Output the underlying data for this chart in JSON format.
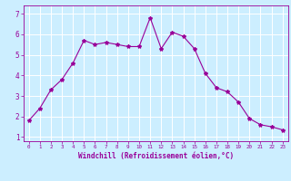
{
  "x": [
    0,
    1,
    2,
    3,
    4,
    5,
    6,
    7,
    8,
    9,
    10,
    11,
    12,
    13,
    14,
    15,
    16,
    17,
    18,
    19,
    20,
    21,
    22,
    23
  ],
  "y": [
    1.8,
    2.4,
    3.3,
    3.8,
    4.6,
    5.7,
    5.5,
    5.6,
    5.5,
    5.4,
    5.4,
    6.8,
    5.3,
    6.1,
    5.9,
    5.3,
    4.1,
    3.4,
    3.2,
    2.7,
    1.9,
    1.6,
    1.5,
    1.35
  ],
  "line_color": "#990099",
  "marker": "*",
  "marker_size": 3,
  "bg_color": "#cceeff",
  "grid_color": "#ffffff",
  "xlabel": "Windchill (Refroidissement éolien,°C)",
  "xlabel_color": "#990099",
  "tick_color": "#990099",
  "ylim": [
    0.8,
    7.4
  ],
  "xlim": [
    -0.5,
    23.5
  ],
  "yticks": [
    1,
    2,
    3,
    4,
    5,
    6,
    7
  ],
  "xticks": [
    0,
    1,
    2,
    3,
    4,
    5,
    6,
    7,
    8,
    9,
    10,
    11,
    12,
    13,
    14,
    15,
    16,
    17,
    18,
    19,
    20,
    21,
    22,
    23
  ],
  "xlabel_fontsize": 5.5,
  "ytick_fontsize": 5.5,
  "xtick_fontsize": 4.2
}
